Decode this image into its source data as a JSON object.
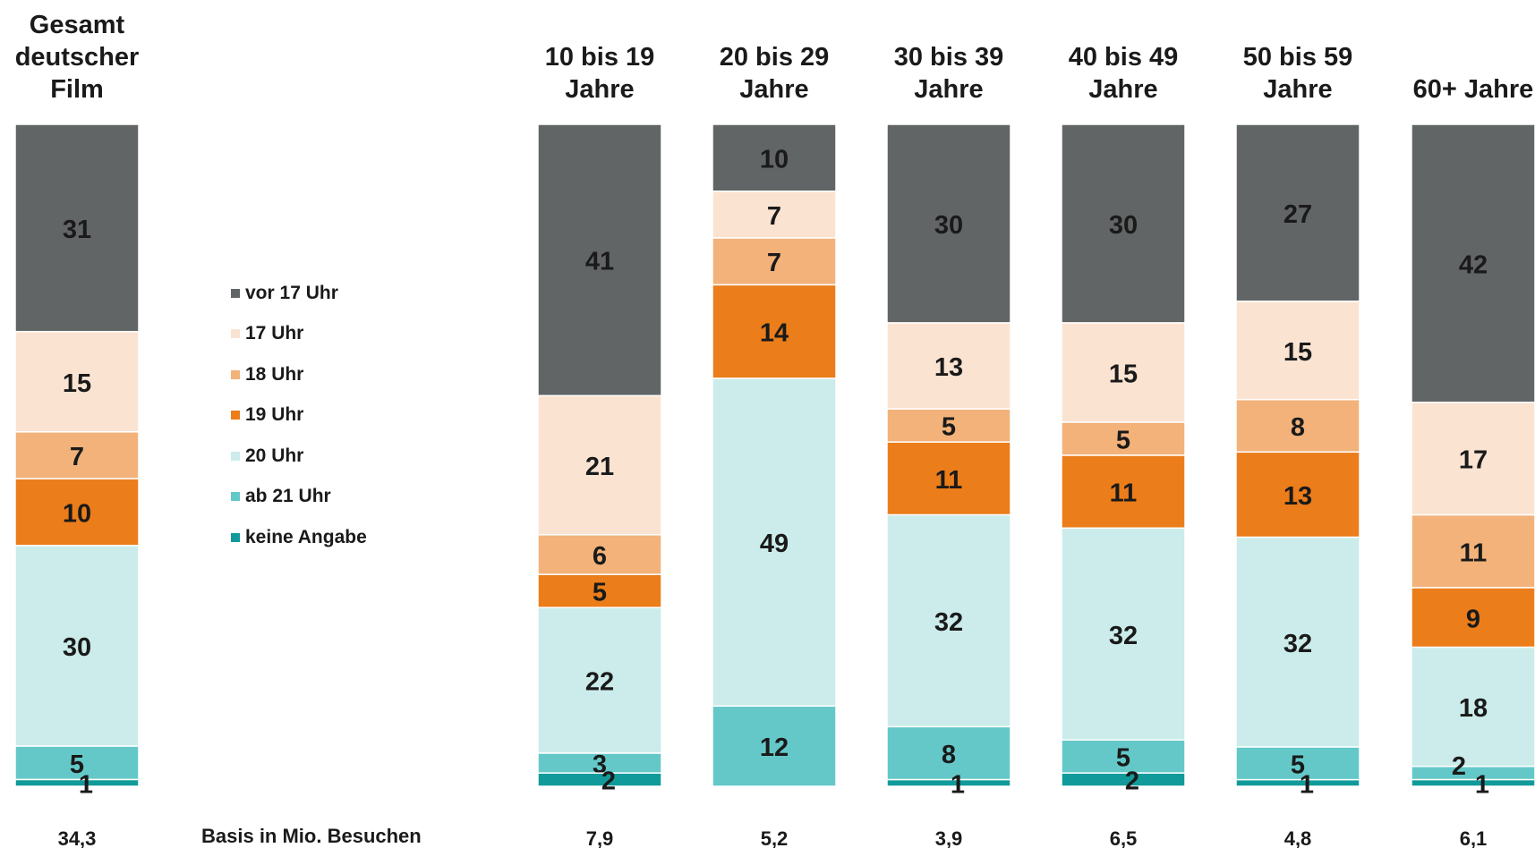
{
  "chart_data": {
    "type": "bar",
    "stacked": true,
    "orientation": "vertical",
    "unit": "%",
    "categories": [
      "Gesamt deutscher Film",
      "10 bis 19 Jahre",
      "20 bis 29 Jahre",
      "30 bis 39 Jahre",
      "40 bis 49 Jahre",
      "50 bis 59 Jahre",
      "60+ Jahre"
    ],
    "category_titles": [
      "Gesamt\ndeutscher\nFilm",
      "10 bis 19\nJahre",
      "20 bis 29\nJahre",
      "30 bis 39\nJahre",
      "40 bis 49\nJahre",
      "50 bis 59\nJahre",
      "60+ Jahre"
    ],
    "series": [
      {
        "name": "vor 17 Uhr",
        "color": "#626566",
        "values": [
          31,
          41,
          10,
          30,
          30,
          27,
          42
        ]
      },
      {
        "name": "17 Uhr",
        "color": "#fbe3d2",
        "values": [
          15,
          21,
          7,
          13,
          15,
          15,
          17
        ]
      },
      {
        "name": "18 Uhr",
        "color": "#f2b27a",
        "values": [
          7,
          6,
          7,
          5,
          5,
          8,
          11
        ]
      },
      {
        "name": "19 Uhr",
        "color": "#eb7d1a",
        "values": [
          10,
          5,
          14,
          11,
          11,
          13,
          9
        ]
      },
      {
        "name": "20 Uhr",
        "color": "#cbecea",
        "values": [
          30,
          22,
          49,
          32,
          32,
          32,
          18
        ]
      },
      {
        "name": "ab 21 Uhr",
        "color": "#64c8c8",
        "values": [
          5,
          3,
          12,
          8,
          5,
          5,
          2
        ]
      },
      {
        "name": "keine Angabe",
        "color": "#119a9a",
        "values": [
          1,
          2,
          0,
          1,
          2,
          1,
          1
        ]
      }
    ],
    "base_label": "Basis in Mio. Besuchen",
    "base_values": [
      "34,3",
      "7,9",
      "5,2",
      "3,9",
      "6,5",
      "4,8",
      "6,1"
    ],
    "legend_position": "left-center"
  }
}
